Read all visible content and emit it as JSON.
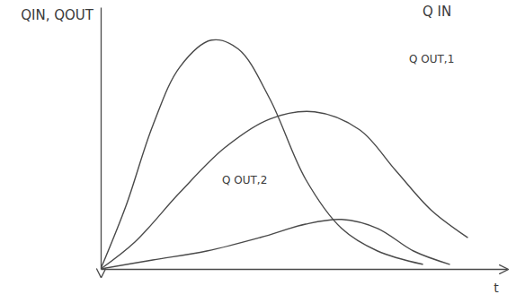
{
  "chart_data": {
    "type": "line",
    "x_label": "t",
    "y_label": "QIN, QOUT",
    "xlim": [
      0,
      11.3
    ],
    "ylim": [
      0,
      7.3
    ],
    "tick_labels": false,
    "grid": false,
    "series": [
      {
        "name": "Q IN",
        "color": "#4a4a4a",
        "x": [
          0,
          0.7,
          1.45,
          2.2,
          3.08,
          3.83,
          4.7,
          5.7,
          6.7,
          7.7,
          8.95
        ],
        "values": [
          0,
          1.75,
          4,
          5.63,
          6.38,
          6.13,
          4.75,
          2.5,
          1.13,
          0.5,
          0.13
        ]
      },
      {
        "name": "Q OUT,1",
        "color": "#4a4a4a",
        "x": [
          0,
          0.95,
          2.2,
          3.45,
          4.7,
          5.95,
          7.2,
          8.2,
          9.2,
          10.2
        ],
        "values": [
          0,
          0.75,
          2.13,
          3.38,
          4.18,
          4.38,
          3.88,
          2.75,
          1.63,
          0.88
        ]
      },
      {
        "name": "Q OUT,2",
        "color": "#4a4a4a",
        "x": [
          0,
          1.45,
          2.95,
          4.45,
          5.7,
          6.7,
          7.7,
          8.7,
          9.7
        ],
        "values": [
          0,
          0.25,
          0.5,
          0.88,
          1.25,
          1.38,
          1.13,
          0.5,
          0.13
        ]
      }
    ]
  }
}
